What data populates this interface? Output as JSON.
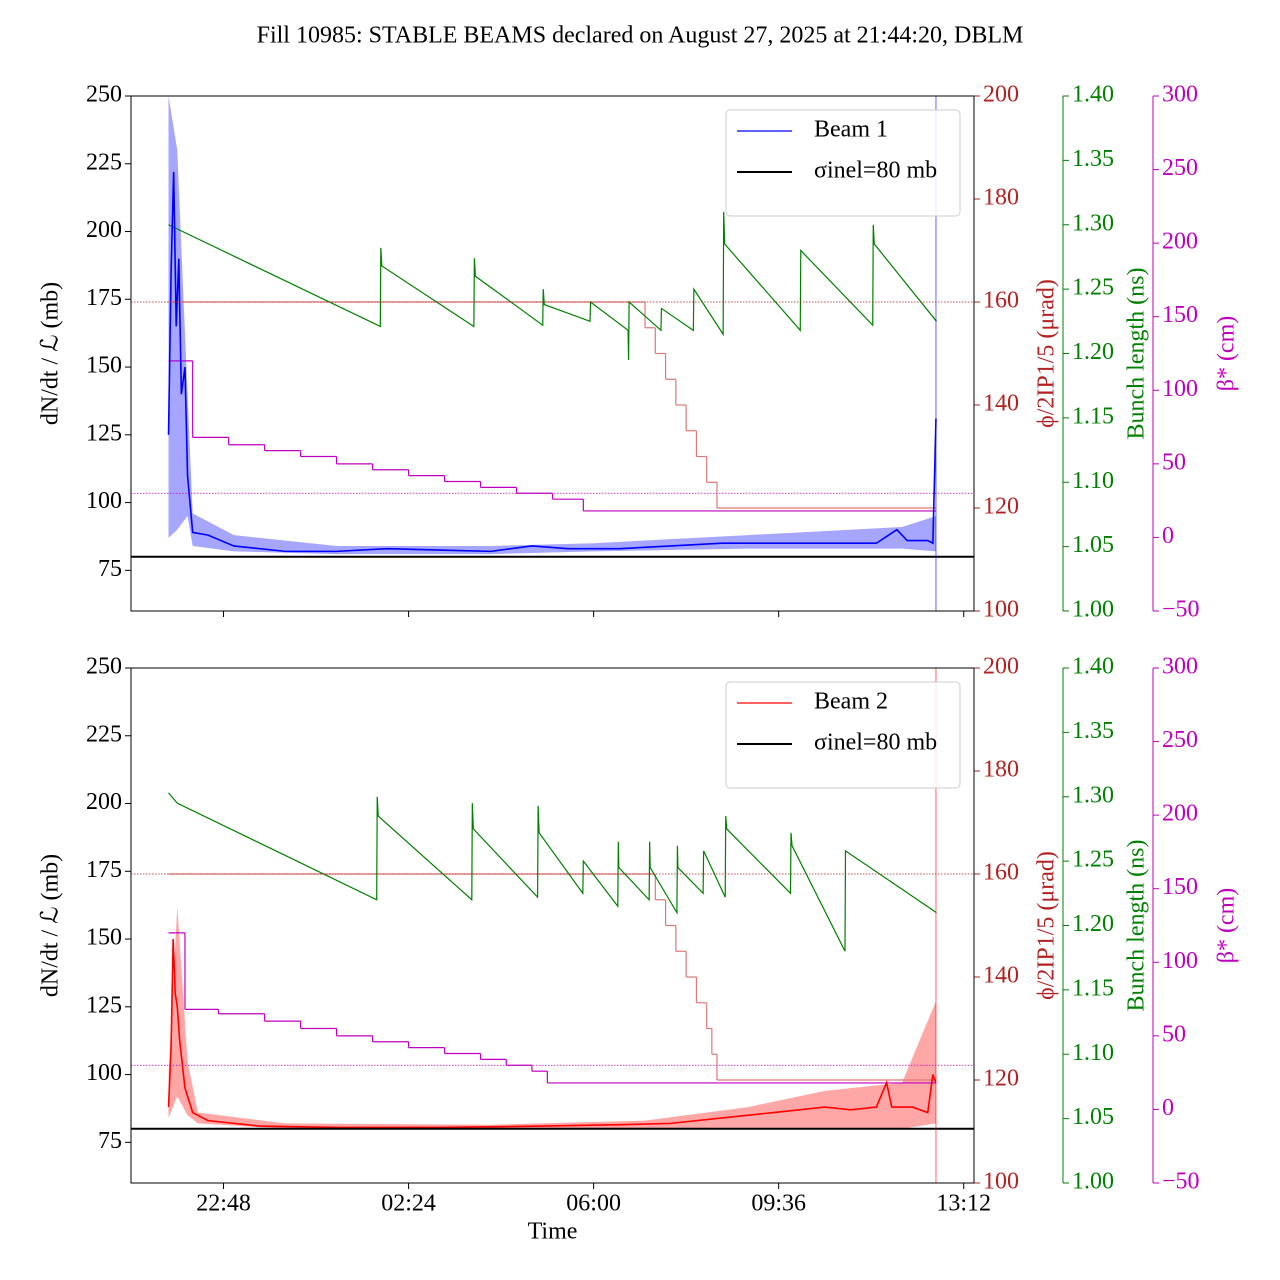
{
  "title": "Fill 10985: STABLE BEAMS declared on August 27, 2025 at 21:44:20, DBLM",
  "chart_data": [
    {
      "type": "line",
      "xlim": [
        21,
        37.4
      ],
      "xticks": [
        22.8,
        26.4,
        30,
        33.6,
        37.2
      ],
      "ylim": [
        60,
        250
      ],
      "yticks": [
        75,
        100,
        125,
        150,
        175,
        200,
        225,
        250
      ],
      "ylabel": "dN/dt / ℒ (mb)",
      "y2lim": [
        100,
        200
      ],
      "y2ticks": [
        100,
        120,
        140,
        160,
        180,
        200
      ],
      "y2label": "ϕ/2IP1/5 (μrad)",
      "y2color": "#b22222",
      "y3lim": [
        1.0,
        1.4
      ],
      "y3ticks": [
        {
          "value": 1.0,
          "label": "1.00"
        },
        1.05,
        {
          "value": 1.1,
          "label": "1.10"
        },
        1.15,
        {
          "value": 1.2,
          "label": "1.20"
        },
        1.25,
        {
          "value": 1.3,
          "label": "1.30"
        },
        1.35,
        {
          "value": 1.4,
          "label": "1.40"
        }
      ],
      "y3label": "Bunch length (ns)",
      "y3color": "#008000",
      "y4lim": [
        -50,
        300
      ],
      "y4ticks": [
        {
          "value": -50,
          "label": "−50"
        },
        0,
        50,
        100,
        150,
        200,
        250,
        300
      ],
      "y4label": "β* (cm)",
      "y4color": "#bf00bf",
      "legend": "upper right",
      "band": {
        "color": "#0000ff",
        "x": [
          21.73,
          21.9,
          22.1,
          22.2,
          23,
          25,
          28,
          30,
          33,
          36,
          36.66
        ],
        "lower": [
          87,
          90,
          95,
          84,
          82,
          81,
          81,
          82,
          83,
          83,
          82
        ],
        "upper": [
          250,
          230,
          140,
          96,
          88,
          84,
          84,
          85,
          88,
          91,
          95
        ]
      },
      "series": [
        {
          "color": "#e07878",
          "axis": "y2",
          "drawstyle": "steps",
          "x": [
            21.73,
            31.0,
            31.2,
            31.4,
            31.6,
            31.8,
            32.0,
            32.2,
            32.4,
            36.66
          ],
          "values": [
            160,
            155,
            150,
            145,
            140,
            135,
            130,
            125,
            120,
            120
          ]
        },
        {
          "color": "#008000",
          "axis": "y3",
          "x": [
            21.73,
            25.85,
            25.86,
            25.88,
            27.67,
            27.68,
            27.7,
            29.01,
            29.02,
            29.04,
            29.93,
            29.94,
            30.67,
            30.68,
            30.69,
            31.31,
            31.32,
            31.94,
            31.95,
            32.52,
            32.53,
            32.55,
            34.02,
            34.03,
            35.43,
            35.44,
            35.46,
            36.67
          ],
          "values": [
            1.3,
            1.221,
            1.282,
            1.268,
            1.221,
            1.274,
            1.26,
            1.222,
            1.25,
            1.238,
            1.225,
            1.24,
            1.218,
            1.195,
            1.24,
            1.218,
            1.235,
            1.218,
            1.25,
            1.215,
            1.31,
            1.285,
            1.218,
            1.28,
            1.222,
            1.3,
            1.285,
            1.225
          ]
        },
        {
          "color": "#bf00bf",
          "axis": "y4",
          "drawstyle": "steps",
          "x": [
            21.73,
            22.2,
            22.9,
            23.6,
            24.3,
            25.0,
            25.7,
            26.4,
            27.1,
            27.8,
            28.5,
            29.2,
            29.8,
            36.66
          ],
          "values": [
            120,
            68,
            63,
            59,
            55,
            50,
            46,
            42,
            38,
            34,
            30,
            26,
            18,
            18
          ]
        },
        {
          "name": "Beam 1",
          "color": "#0000ff",
          "x": [
            21.73,
            21.78,
            21.83,
            21.88,
            21.93,
            21.98,
            22.05,
            22.1,
            22.2,
            22.5,
            23.0,
            24.0,
            25.0,
            26.0,
            27.0,
            28.0,
            28.8,
            29.5,
            30.5,
            31.5,
            32.5,
            33.5,
            34.5,
            35.5,
            35.9,
            36.1,
            36.5,
            36.6,
            36.66
          ],
          "values": [
            125,
            185,
            222,
            165,
            190,
            140,
            150,
            110,
            89,
            88,
            84,
            82,
            82,
            83,
            82.5,
            82,
            84,
            83,
            83,
            84,
            85,
            85,
            85,
            85,
            90,
            86,
            86,
            85,
            131
          ]
        }
      ],
      "hlines": [
        {
          "color": "#b22222",
          "axis": "y2",
          "value": 160,
          "style": "dotted"
        },
        {
          "color": "#bf00bf",
          "axis": "y4",
          "value": 30,
          "style": "dotted"
        },
        {
          "name": "σinel=80 mb",
          "color": "#000000",
          "axis": "y",
          "value": 80
        }
      ],
      "vlines": [
        {
          "color": "#0000ff",
          "value": 36.66
        }
      ]
    },
    {
      "type": "line",
      "xlim": [
        21,
        37.4
      ],
      "xticks": [
        {
          "value": 22.8,
          "label": "22:48"
        },
        {
          "value": 26.4,
          "label": "02:24"
        },
        {
          "value": 30,
          "label": "06:00"
        },
        {
          "value": 33.6,
          "label": "09:36"
        },
        {
          "value": 37.2,
          "label": "13:12"
        }
      ],
      "xlabel": "Time",
      "ylim": [
        60,
        250
      ],
      "yticks": [
        75,
        100,
        125,
        150,
        175,
        200,
        225,
        250
      ],
      "ylabel": "dN/dt / ℒ (mb)",
      "y2lim": [
        100,
        200
      ],
      "y2ticks": [
        100,
        120,
        140,
        160,
        180,
        200
      ],
      "y2label": "ϕ/2IP1/5 (μrad)",
      "y2color": "#b22222",
      "y3lim": [
        1.0,
        1.4
      ],
      "y3ticks": [
        {
          "value": 1.0,
          "label": "1.00"
        },
        1.05,
        {
          "value": 1.1,
          "label": "1.10"
        },
        1.15,
        {
          "value": 1.2,
          "label": "1.20"
        },
        1.25,
        {
          "value": 1.3,
          "label": "1.30"
        },
        1.35,
        {
          "value": 1.4,
          "label": "1.40"
        }
      ],
      "y3label": "Bunch length (ns)",
      "y3color": "#008000",
      "y4lim": [
        -50,
        300
      ],
      "y4ticks": [
        {
          "value": -50,
          "label": "−50"
        },
        0,
        50,
        100,
        150,
        200,
        250,
        300
      ],
      "y4label": "β* (cm)",
      "y4color": "#bf00bf",
      "legend": "upper right",
      "band": {
        "color": "#ff0000",
        "x": [
          21.73,
          21.9,
          22.1,
          22.3,
          24,
          28,
          31,
          33,
          34.5,
          36,
          36.66
        ],
        "lower": [
          84,
          92,
          85,
          82,
          80,
          80,
          80,
          80,
          80,
          80,
          82
        ],
        "upper": [
          100,
          162,
          105,
          86,
          82,
          81.5,
          83,
          88,
          94,
          97,
          127
        ]
      },
      "series": [
        {
          "color": "#e07878",
          "axis": "y2",
          "drawstyle": "steps",
          "x": [
            21.73,
            31.2,
            31.4,
            31.6,
            31.8,
            32.0,
            32.2,
            32.3,
            32.4,
            36.66
          ],
          "values": [
            160,
            155,
            150,
            145,
            140,
            135,
            130,
            125,
            120,
            120
          ]
        },
        {
          "color": "#008000",
          "axis": "y3",
          "x": [
            21.73,
            21.9,
            25.78,
            25.79,
            25.81,
            27.63,
            27.64,
            27.66,
            28.91,
            28.92,
            28.94,
            29.79,
            29.8,
            30.47,
            30.48,
            30.49,
            31.08,
            31.09,
            31.1,
            31.62,
            31.63,
            31.64,
            32.13,
            32.14,
            32.56,
            32.57,
            32.59,
            33.83,
            33.84,
            33.86,
            34.89,
            34.9,
            36.67
          ],
          "values": [
            1.303,
            1.295,
            1.22,
            1.3,
            1.285,
            1.22,
            1.295,
            1.275,
            1.222,
            1.293,
            1.272,
            1.225,
            1.25,
            1.215,
            1.265,
            1.245,
            1.22,
            1.265,
            1.245,
            1.21,
            1.262,
            1.245,
            1.225,
            1.258,
            1.222,
            1.285,
            1.275,
            1.225,
            1.272,
            1.262,
            1.18,
            1.258,
            1.21
          ]
        },
        {
          "color": "#bf00bf",
          "axis": "y4",
          "drawstyle": "steps",
          "x": [
            21.73,
            22.05,
            22.7,
            23.6,
            24.3,
            25.0,
            25.7,
            26.4,
            27.1,
            27.8,
            28.3,
            28.8,
            29.1,
            36.66
          ],
          "values": [
            120,
            68,
            65,
            60,
            55,
            50,
            46,
            42,
            38,
            34,
            30,
            26,
            18,
            18
          ]
        },
        {
          "name": "Beam 2",
          "color": "#ff0000",
          "x": [
            21.73,
            21.78,
            21.82,
            21.86,
            21.9,
            21.95,
            22.05,
            22.2,
            22.5,
            23.5,
            25.0,
            27.0,
            29.0,
            30.5,
            31.5,
            32.5,
            33.5,
            34.0,
            34.5,
            35.0,
            35.5,
            35.7,
            35.8,
            36.2,
            36.5,
            36.6,
            36.66
          ],
          "values": [
            88,
            110,
            150,
            130,
            125,
            112,
            95,
            86,
            83,
            81,
            80.5,
            80.5,
            81,
            81.5,
            82,
            84,
            86,
            87,
            88,
            87,
            88,
            97,
            88,
            88,
            86,
            100,
            97
          ]
        }
      ],
      "hlines": [
        {
          "color": "#b22222",
          "axis": "y2",
          "value": 160,
          "style": "dotted"
        },
        {
          "color": "#bf00bf",
          "axis": "y4",
          "value": 30,
          "style": "dotted"
        },
        {
          "name": "σinel=80 mb",
          "color": "#000000",
          "axis": "y",
          "value": 80
        }
      ],
      "vlines": [
        {
          "color": "#ff0000",
          "value": 36.66
        }
      ]
    }
  ]
}
